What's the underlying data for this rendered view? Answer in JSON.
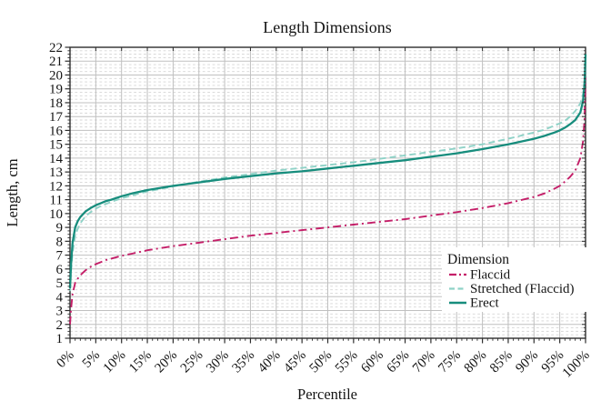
{
  "chart_data": {
    "type": "line",
    "title": "Length Dimensions",
    "xlabel": "Percentile",
    "ylabel": "Length, cm",
    "xlim": [
      0,
      100
    ],
    "ylim": [
      1,
      22
    ],
    "x_tick_labels": [
      "0%",
      "5%",
      "10%",
      "15%",
      "20%",
      "25%",
      "30%",
      "35%",
      "40%",
      "45%",
      "50%",
      "55%",
      "60%",
      "65%",
      "70%",
      "75%",
      "80%",
      "85%",
      "90%",
      "95%",
      "100%"
    ],
    "y_tick_labels": [
      1,
      2,
      3,
      4,
      5,
      6,
      7,
      8,
      9,
      10,
      11,
      12,
      13,
      14,
      15,
      16,
      17,
      18,
      19,
      20,
      21,
      22
    ],
    "grid": {
      "major": true,
      "minor_horizontal_step": 0.25,
      "major_color": "#c0c0c0",
      "minor_color": "#d6d6d6",
      "frame_color": "#2e2e2e"
    },
    "legend": {
      "title": "Dimension",
      "position": "inside-bottom-right"
    },
    "series": [
      {
        "name": "Flaccid",
        "color": "#c41e68",
        "style": "dash-dot",
        "points": [
          [
            0,
            2.0
          ],
          [
            0.2,
            3.1
          ],
          [
            0.5,
            4.2
          ],
          [
            1,
            5.0
          ],
          [
            1.5,
            5.3
          ],
          [
            2,
            5.55
          ],
          [
            3,
            5.9
          ],
          [
            4,
            6.15
          ],
          [
            5,
            6.35
          ],
          [
            6,
            6.5
          ],
          [
            7,
            6.65
          ],
          [
            8,
            6.75
          ],
          [
            10,
            6.95
          ],
          [
            12,
            7.1
          ],
          [
            15,
            7.35
          ],
          [
            20,
            7.65
          ],
          [
            25,
            7.9
          ],
          [
            30,
            8.15
          ],
          [
            35,
            8.4
          ],
          [
            40,
            8.6
          ],
          [
            45,
            8.8
          ],
          [
            50,
            9.0
          ],
          [
            55,
            9.2
          ],
          [
            60,
            9.4
          ],
          [
            65,
            9.6
          ],
          [
            70,
            9.85
          ],
          [
            75,
            10.1
          ],
          [
            80,
            10.4
          ],
          [
            85,
            10.75
          ],
          [
            90,
            11.2
          ],
          [
            92,
            11.45
          ],
          [
            94,
            11.8
          ],
          [
            95,
            12.0
          ],
          [
            96,
            12.3
          ],
          [
            97,
            12.65
          ],
          [
            98,
            13.1
          ],
          [
            99,
            14.0
          ],
          [
            99.5,
            15.2
          ],
          [
            99.8,
            16.8
          ],
          [
            100,
            19.8
          ]
        ]
      },
      {
        "name": "Stretched (Flaccid)",
        "color": "#8fd2c7",
        "style": "dashed",
        "points": [
          [
            0,
            4.4
          ],
          [
            0.2,
            5.8
          ],
          [
            0.5,
            7.2
          ],
          [
            1,
            8.4
          ],
          [
            1.5,
            8.9
          ],
          [
            2,
            9.3
          ],
          [
            3,
            9.8
          ],
          [
            4,
            10.1
          ],
          [
            5,
            10.35
          ],
          [
            6,
            10.55
          ],
          [
            7,
            10.7
          ],
          [
            8,
            10.85
          ],
          [
            10,
            11.1
          ],
          [
            12,
            11.3
          ],
          [
            15,
            11.6
          ],
          [
            20,
            11.95
          ],
          [
            25,
            12.3
          ],
          [
            30,
            12.6
          ],
          [
            35,
            12.85
          ],
          [
            40,
            13.1
          ],
          [
            45,
            13.3
          ],
          [
            50,
            13.5
          ],
          [
            55,
            13.7
          ],
          [
            60,
            13.95
          ],
          [
            65,
            14.2
          ],
          [
            70,
            14.45
          ],
          [
            75,
            14.7
          ],
          [
            80,
            15.0
          ],
          [
            85,
            15.4
          ],
          [
            90,
            15.85
          ],
          [
            92,
            16.05
          ],
          [
            94,
            16.35
          ],
          [
            95,
            16.5
          ],
          [
            96,
            16.7
          ],
          [
            97,
            17.0
          ],
          [
            98,
            17.4
          ],
          [
            99,
            17.95
          ],
          [
            99.5,
            18.6
          ],
          [
            99.8,
            19.6
          ],
          [
            100,
            21.4
          ]
        ]
      },
      {
        "name": "Erect",
        "color": "#178d7d",
        "style": "solid",
        "points": [
          [
            0,
            4.6
          ],
          [
            0.2,
            6.3
          ],
          [
            0.5,
            7.9
          ],
          [
            1,
            9.0
          ],
          [
            1.5,
            9.45
          ],
          [
            2,
            9.75
          ],
          [
            3,
            10.15
          ],
          [
            4,
            10.4
          ],
          [
            5,
            10.6
          ],
          [
            6,
            10.75
          ],
          [
            7,
            10.9
          ],
          [
            8,
            11.0
          ],
          [
            10,
            11.25
          ],
          [
            12,
            11.45
          ],
          [
            15,
            11.7
          ],
          [
            20,
            12.0
          ],
          [
            25,
            12.25
          ],
          [
            30,
            12.5
          ],
          [
            35,
            12.7
          ],
          [
            40,
            12.9
          ],
          [
            45,
            13.05
          ],
          [
            50,
            13.25
          ],
          [
            55,
            13.45
          ],
          [
            60,
            13.65
          ],
          [
            65,
            13.85
          ],
          [
            70,
            14.1
          ],
          [
            75,
            14.35
          ],
          [
            80,
            14.65
          ],
          [
            85,
            15.0
          ],
          [
            90,
            15.4
          ],
          [
            92,
            15.6
          ],
          [
            94,
            15.85
          ],
          [
            95,
            16.0
          ],
          [
            96,
            16.2
          ],
          [
            97,
            16.45
          ],
          [
            98,
            16.75
          ],
          [
            99,
            17.3
          ],
          [
            99.5,
            18.1
          ],
          [
            99.8,
            19.3
          ],
          [
            100,
            21.5
          ]
        ]
      }
    ]
  }
}
